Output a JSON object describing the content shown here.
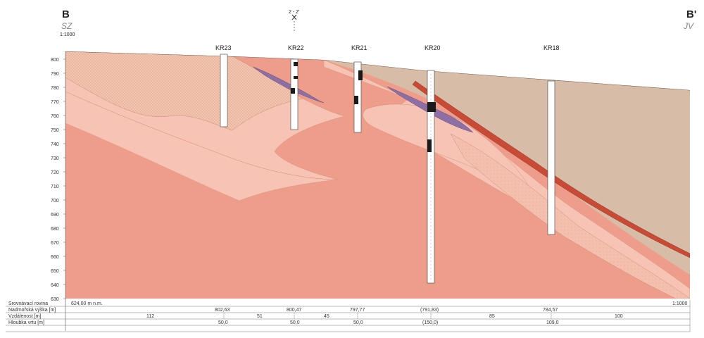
{
  "section": {
    "left_label": "B",
    "right_label": "B'",
    "left_direction": "SZ",
    "right_direction": "JV",
    "scale_left": "1:1000",
    "scale_right": "1:1000",
    "cross_marker": "2 - 2'",
    "datum": "624,00 m n.m."
  },
  "axis": {
    "ticks": [
      800,
      790,
      780,
      770,
      760,
      750,
      740,
      730,
      720,
      710,
      700,
      690,
      680,
      670,
      660,
      650,
      640,
      630
    ]
  },
  "boreholes": [
    {
      "name": "KR23"
    },
    {
      "name": "KR22"
    },
    {
      "name": "KR21"
    },
    {
      "name": "KR20"
    },
    {
      "name": "KR18"
    }
  ],
  "table": {
    "rows": [
      {
        "label": "Srovnávací rovina"
      },
      {
        "label": "Nadmořská výška [m]",
        "values": [
          "802,63",
          "800,47",
          "797,77",
          "(791,83)",
          "784,57"
        ]
      },
      {
        "label": "Vzdálenost [m]",
        "values": [
          "112",
          "51",
          "45",
          "85",
          "100"
        ]
      },
      {
        "label": "Hloubka vrtu [m]",
        "values": [
          "50,0",
          "50,0",
          "50,0",
          "(150,0)",
          "109,0"
        ]
      }
    ]
  },
  "colors": {
    "deep_layer": "#ee9d8a",
    "pale_layer": "#f6c3b4",
    "dotted_layer": "#f1bfa8",
    "overburden": "#d7bda7",
    "red_seam": "#c94a35",
    "violet_lens": "#8d6fa3"
  }
}
